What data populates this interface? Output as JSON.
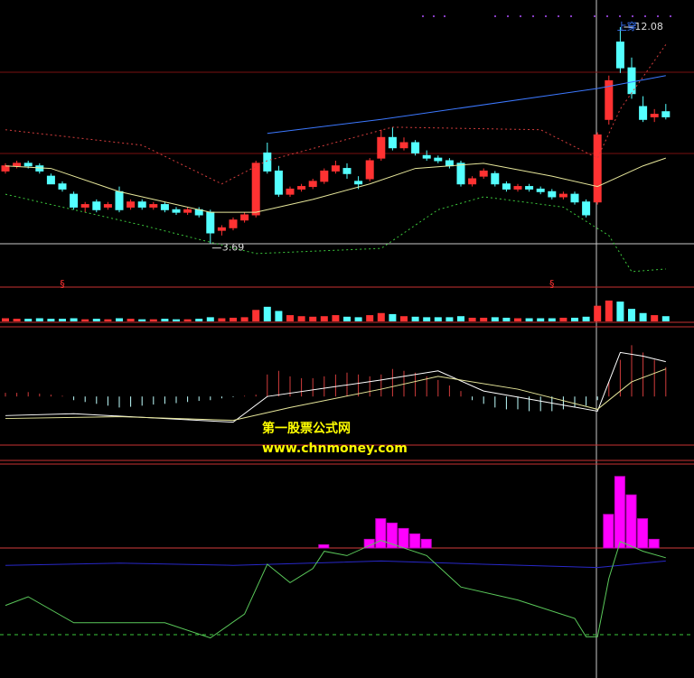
{
  "chart_data": [
    {
      "type": "candlestick",
      "open": [
        6.5,
        6.7,
        6.8,
        6.7,
        6.3,
        6.0,
        5.6,
        5.1,
        5.3,
        5.1,
        5.7,
        5.1,
        5.3,
        5.1,
        5.2,
        5.0,
        4.9,
        5.0,
        4.9,
        4.2,
        4.3,
        4.6,
        4.8,
        7.2,
        6.5,
        5.6,
        5.8,
        5.9,
        6.1,
        6.5,
        6.6,
        6.1,
        6.2,
        7.0,
        7.8,
        7.4,
        7.6,
        7.1,
        7.0,
        6.9,
        6.8,
        6.0,
        6.3,
        6.4,
        6.0,
        5.8,
        5.9,
        5.8,
        5.7,
        5.5,
        5.6,
        5.3,
        5.3,
        8.5,
        11.5,
        10.5,
        9.0,
        8.6,
        8.8
      ],
      "high": [
        6.8,
        6.9,
        6.9,
        6.8,
        6.4,
        6.1,
        5.7,
        5.3,
        5.4,
        5.3,
        5.9,
        5.4,
        5.4,
        5.3,
        5.3,
        5.1,
        5.1,
        5.1,
        5.0,
        4.4,
        4.7,
        4.9,
        6.9,
        7.6,
        6.7,
        5.9,
        6.0,
        6.2,
        6.6,
        6.9,
        6.8,
        6.3,
        7.0,
        8.1,
        8.2,
        7.8,
        7.7,
        7.3,
        7.1,
        7.0,
        6.9,
        6.3,
        6.6,
        6.5,
        6.1,
        6.0,
        6.0,
        5.9,
        5.8,
        5.7,
        5.7,
        5.4,
        8.0,
        10.2,
        12.08,
        10.9,
        9.4,
        8.9,
        9.1
      ],
      "low": [
        6.4,
        6.6,
        6.6,
        6.4,
        6.0,
        5.7,
        5.0,
        4.9,
        4.9,
        5.0,
        4.9,
        5.0,
        5.0,
        5.0,
        4.9,
        4.8,
        4.8,
        4.7,
        3.69,
        4.0,
        4.2,
        4.5,
        4.7,
        6.4,
        5.5,
        5.5,
        5.7,
        5.8,
        6.0,
        6.4,
        6.2,
        5.8,
        6.1,
        6.9,
        7.3,
        7.3,
        7.1,
        6.9,
        6.8,
        6.6,
        5.9,
        5.9,
        6.2,
        5.9,
        5.7,
        5.7,
        5.7,
        5.6,
        5.4,
        5.4,
        5.2,
        4.7,
        5.2,
        8.3,
        10.3,
        9.3,
        8.4,
        8.4,
        8.5
      ],
      "close": [
        6.7,
        6.8,
        6.7,
        6.5,
        6.0,
        5.8,
        5.1,
        5.2,
        5.0,
        5.2,
        5.0,
        5.3,
        5.1,
        5.2,
        5.0,
        4.9,
        5.0,
        4.8,
        4.1,
        4.3,
        4.6,
        4.8,
        6.8,
        6.5,
        5.6,
        5.8,
        5.9,
        6.1,
        6.5,
        6.7,
        6.4,
        6.0,
        6.9,
        7.8,
        7.4,
        7.6,
        7.2,
        7.0,
        6.9,
        6.7,
        6.0,
        6.2,
        6.5,
        6.0,
        5.8,
        5.9,
        5.8,
        5.7,
        5.5,
        5.6,
        5.3,
        4.8,
        7.9,
        10.0,
        10.5,
        9.5,
        8.5,
        8.7,
        8.6
      ],
      "up_color": "#ff3232",
      "down_color": "#54ffff",
      "ylim": [
        2.0,
        13.13
      ],
      "overlays": [
        {
          "color": "#e6e69a",
          "style": "solid",
          "x": [
            0,
            4,
            10,
            18,
            22,
            27,
            32,
            36,
            42,
            48,
            52,
            56,
            58
          ],
          "values": [
            6.7,
            6.6,
            5.7,
            4.9,
            4.9,
            5.4,
            6.0,
            6.6,
            6.8,
            6.3,
            5.9,
            6.7,
            7.0
          ]
        },
        {
          "color": "#3c78ff",
          "style": "solid",
          "x": [
            23,
            33,
            52,
            58
          ],
          "values": [
            7.96,
            8.5,
            9.7,
            10.2
          ]
        },
        {
          "color": "#d23c3c",
          "style": "dotted",
          "x": [
            0,
            12,
            19,
            23,
            34,
            47,
            52,
            54,
            58
          ],
          "values": [
            8.1,
            7.5,
            6.0,
            6.9,
            8.2,
            8.1,
            7.0,
            8.9,
            11.4
          ]
        },
        {
          "color": "#3cc83c",
          "style": "dotted",
          "x": [
            0,
            12,
            22,
            33,
            38,
            42,
            49,
            53,
            55,
            58
          ],
          "values": [
            5.6,
            4.4,
            3.3,
            3.5,
            5.0,
            5.5,
            5.1,
            4.0,
            2.6,
            2.7
          ]
        }
      ],
      "annotations": [
        {
          "text": "§",
          "x": 5
        },
        {
          "text": "§",
          "x": 48
        },
        {
          "text": "上穿",
          "x": 53
        }
      ]
    },
    {
      "type": "bar",
      "values": [
        6,
        5,
        5,
        6,
        5,
        5,
        6,
        4,
        5,
        4,
        6,
        5,
        4,
        4,
        5,
        4,
        4,
        5,
        8,
        6,
        7,
        8,
        22,
        28,
        20,
        12,
        10,
        9,
        10,
        12,
        9,
        8,
        12,
        16,
        14,
        10,
        9,
        8,
        8,
        8,
        10,
        7,
        7,
        8,
        7,
        6,
        6,
        6,
        6,
        7,
        7,
        9,
        30,
        40,
        38,
        24,
        16,
        12,
        10
      ],
      "ylim": [
        0,
        45
      ]
    },
    {
      "type": "macd",
      "histogram": [
        0.1,
        0.1,
        0.12,
        0.08,
        0.05,
        0.02,
        -0.1,
        -0.15,
        -0.2,
        -0.25,
        -0.3,
        -0.28,
        -0.25,
        -0.22,
        -0.2,
        -0.18,
        -0.15,
        -0.12,
        -0.1,
        -0.05,
        -0.02,
        0.02,
        0.05,
        0.6,
        0.7,
        0.55,
        0.5,
        0.5,
        0.55,
        0.6,
        0.65,
        0.6,
        0.55,
        0.6,
        0.75,
        0.7,
        0.65,
        0.55,
        0.45,
        0.3,
        0.15,
        -0.1,
        -0.2,
        -0.3,
        -0.35,
        -0.35,
        -0.4,
        -0.4,
        -0.4,
        -0.35,
        -0.3,
        -0.25,
        -0.1,
        0.4,
        1.0,
        1.4,
        1.2,
        1.0,
        0.8
      ],
      "up_color": "#d23c3c",
      "down_color": "#bfffff",
      "ylim": [
        -1.3,
        1.9
      ],
      "lines": [
        {
          "color": "#ffffff",
          "x": [
            0,
            6,
            20,
            23,
            33,
            38,
            42,
            52,
            54,
            56,
            58
          ],
          "values": [
            -0.52,
            -0.47,
            -0.7,
            0.0,
            0.45,
            0.7,
            0.15,
            -0.4,
            1.2,
            1.1,
            0.95
          ]
        },
        {
          "color": "#e6e69a",
          "x": [
            0,
            10,
            20,
            25,
            33,
            38,
            45,
            52,
            55,
            58
          ],
          "values": [
            -0.6,
            -0.55,
            -0.65,
            -0.3,
            0.2,
            0.55,
            0.2,
            -0.35,
            0.4,
            0.75
          ]
        }
      ]
    },
    {
      "type": "oscillator",
      "ylim": [
        -40,
        160
      ],
      "hlines": [
        {
          "value": 80,
          "color": "#d23c3c",
          "style": "solid"
        },
        {
          "value": 0,
          "color": "#3cc83c",
          "style": "dashed"
        }
      ],
      "bars": {
        "color": "#ff00ff",
        "x": [
          28,
          29,
          32,
          33,
          34,
          35,
          36,
          37,
          53,
          54,
          55,
          56,
          57
        ],
        "values": [
          83,
          80,
          88,
          107,
          103,
          98,
          93,
          88,
          111,
          146,
          129,
          107,
          88
        ]
      },
      "lines": [
        {
          "color": "#2828c8",
          "x": [
            0,
            10,
            20,
            33,
            42,
            52,
            58
          ],
          "values": [
            64,
            66,
            64,
            68,
            65,
            62,
            68
          ]
        },
        {
          "color": "#5ac85a",
          "x": [
            0,
            2,
            6,
            10,
            14,
            18,
            21,
            23,
            25,
            27,
            28,
            30,
            33,
            37,
            40,
            45,
            50,
            51,
            52,
            53,
            54,
            56,
            58
          ],
          "values": [
            27,
            35,
            11,
            11,
            11,
            -3,
            19,
            65,
            48,
            61,
            77,
            73,
            87,
            73,
            44,
            32,
            15,
            -2,
            -2,
            52,
            86,
            77,
            71
          ]
        }
      ]
    }
  ],
  "watermark": {
    "title": "第一股票公式网",
    "url": "www.chnmoney.com"
  }
}
